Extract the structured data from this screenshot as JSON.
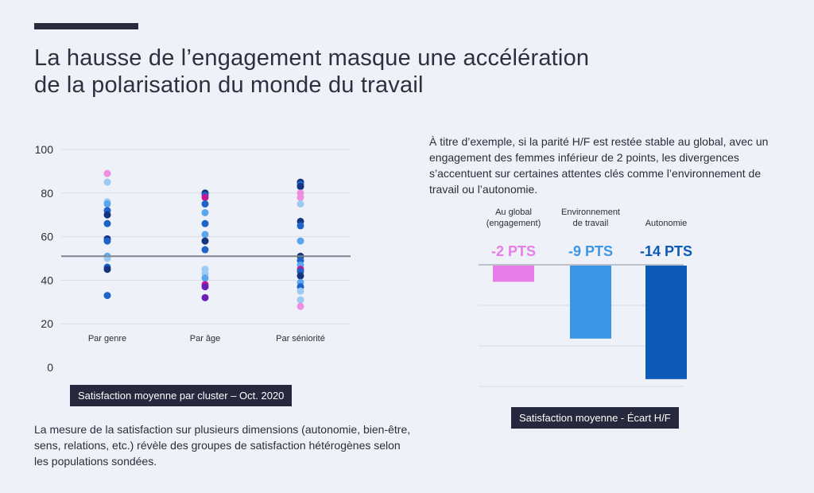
{
  "title": {
    "line1": "La hausse de l’engagement masque une accélération",
    "line2": "de la polarisation du monde du travail"
  },
  "left_caption": "Satisfaction moyenne par cluster – Oct. 2020",
  "left_text": "La mesure de la satisfaction sur plusieurs dimensions (autonomie, bien-être, sens, relations, etc.) révèle des groupes de satisfaction hétérogènes selon les populations sondées.",
  "right_text": "À titre d’exemple, si la parité H/F est restée stable au global, avec un engagement des femmes inférieur de 2 points, les divergences s’accentuent sur certaines attentes clés comme l’environnement de travail ou l’autonomie.",
  "right_caption": "Satisfaction moyenne -  Écart H/F",
  "colors": {
    "navy": "#14357e",
    "blue": "#1e64c8",
    "light_blue": "#5aa6ec",
    "pale_blue": "#9ccaf3",
    "purple": "#6a1fb8",
    "magenta": "#c21893",
    "pink": "#ee8fe2",
    "bar_pink": "#e57ee8",
    "bar_blue": "#3b96e6",
    "bar_navy": "#0d59b8",
    "reference_line": "#7d8391"
  },
  "chart_data": [
    {
      "type": "scatter",
      "categories": [
        "Par genre",
        "Par âge",
        "Par séniorité"
      ],
      "ylim": [
        0,
        100
      ],
      "yticks": [
        0,
        20,
        40,
        60,
        80,
        100
      ],
      "grid": true,
      "reference_line": 51,
      "points": [
        {
          "category": "Par genre",
          "values": [
            89,
            85,
            76,
            75,
            72,
            70,
            66,
            59,
            58,
            51,
            50,
            46,
            45,
            33
          ],
          "colors": [
            "pink",
            "pale_blue",
            "pale_blue",
            "light_blue",
            "blue",
            "navy",
            "blue",
            "navy",
            "blue",
            "light_blue",
            "pale_blue",
            "blue",
            "navy",
            "blue"
          ]
        },
        {
          "category": "Par âge",
          "values": [
            80,
            79,
            78,
            75,
            71,
            66,
            61,
            58,
            54,
            45,
            43,
            41,
            38,
            37,
            32
          ],
          "colors": [
            "navy",
            "blue",
            "magenta",
            "blue",
            "light_blue",
            "blue",
            "light_blue",
            "navy",
            "blue",
            "pale_blue",
            "pale_blue",
            "light_blue",
            "magenta",
            "purple",
            "purple"
          ]
        },
        {
          "category": "Par séniorité",
          "values": [
            85,
            84,
            83,
            80,
            78,
            75,
            67,
            65,
            58,
            51,
            49,
            47,
            45,
            44,
            42,
            39,
            37,
            35,
            31,
            28
          ],
          "colors": [
            "navy",
            "blue",
            "navy",
            "pink",
            "pink",
            "pale_blue",
            "navy",
            "blue",
            "light_blue",
            "navy",
            "blue",
            "light_blue",
            "magenta",
            "blue",
            "navy",
            "light_blue",
            "blue",
            "pale_blue",
            "pale_blue",
            "pink"
          ]
        }
      ]
    },
    {
      "type": "bar",
      "categories": [
        "Au global\n(engagement)",
        "Environnement\nde travail",
        "Autonomie"
      ],
      "values": [
        -2,
        -9,
        -14
      ],
      "value_labels": [
        "-2 PTS",
        "-9 PTS",
        "-14 PTS"
      ],
      "bar_colors": [
        "bar_pink",
        "bar_blue",
        "bar_navy"
      ],
      "ylim": [
        -15,
        0
      ],
      "grid": true
    }
  ]
}
